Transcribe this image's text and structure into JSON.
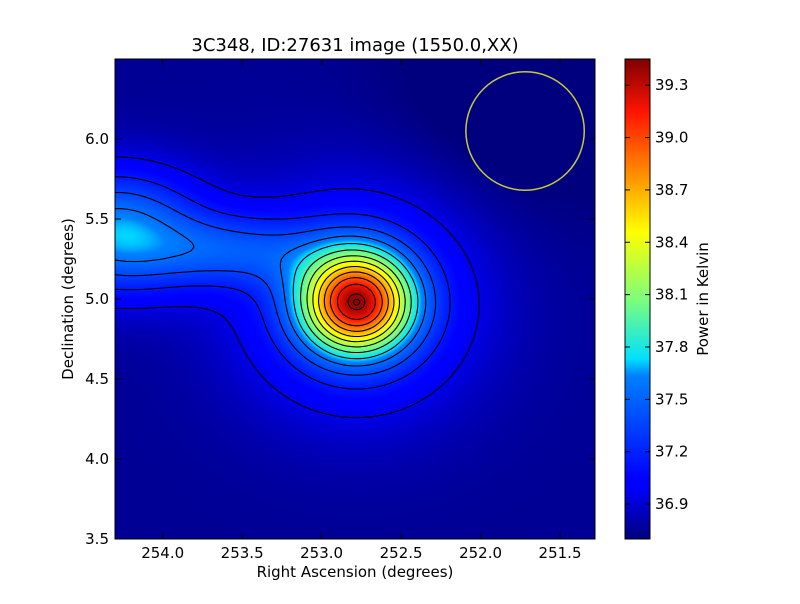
{
  "chart_data": {
    "type": "heatmap",
    "title": "3C348, ID:27631 image (1550.0,XX)",
    "xlabel": "Right Ascension (degrees)",
    "ylabel": "Declination (degrees)",
    "colorbar_label": "Power in Kelvin",
    "xlim": [
      254.3,
      251.28
    ],
    "ylim": [
      3.5,
      6.5
    ],
    "x_ticks": [
      254.0,
      253.5,
      253.0,
      252.5,
      252.0,
      251.5
    ],
    "x_tick_labels": [
      "254.0",
      "253.5",
      "253.0",
      "252.5",
      "252.0",
      "251.5"
    ],
    "y_ticks": [
      3.5,
      4.0,
      4.5,
      5.0,
      5.5,
      6.0
    ],
    "y_tick_labels": [
      "3.5",
      "4.0",
      "4.5",
      "5.0",
      "5.5",
      "6.0"
    ],
    "colorbar_range": [
      36.7,
      39.45
    ],
    "colorbar_ticks": [
      36.9,
      37.2,
      37.5,
      37.8,
      38.1,
      38.4,
      38.7,
      39.0,
      39.3
    ],
    "colorbar_tick_labels": [
      "36.9",
      "37.2",
      "37.5",
      "37.8",
      "38.1",
      "38.4",
      "38.7",
      "39.0",
      "39.3"
    ],
    "colormap": "jet",
    "contour_color": "#000000",
    "peak": {
      "ra": 252.78,
      "dec": 4.98,
      "value": 39.4
    },
    "secondary_lobe": {
      "ra": 254.3,
      "dec": 5.42,
      "value": 37.65
    },
    "beam_circle": {
      "ra": 251.72,
      "dec": 6.05,
      "radius_deg": 0.37,
      "color": "#c8c83c"
    },
    "grid": false
  }
}
